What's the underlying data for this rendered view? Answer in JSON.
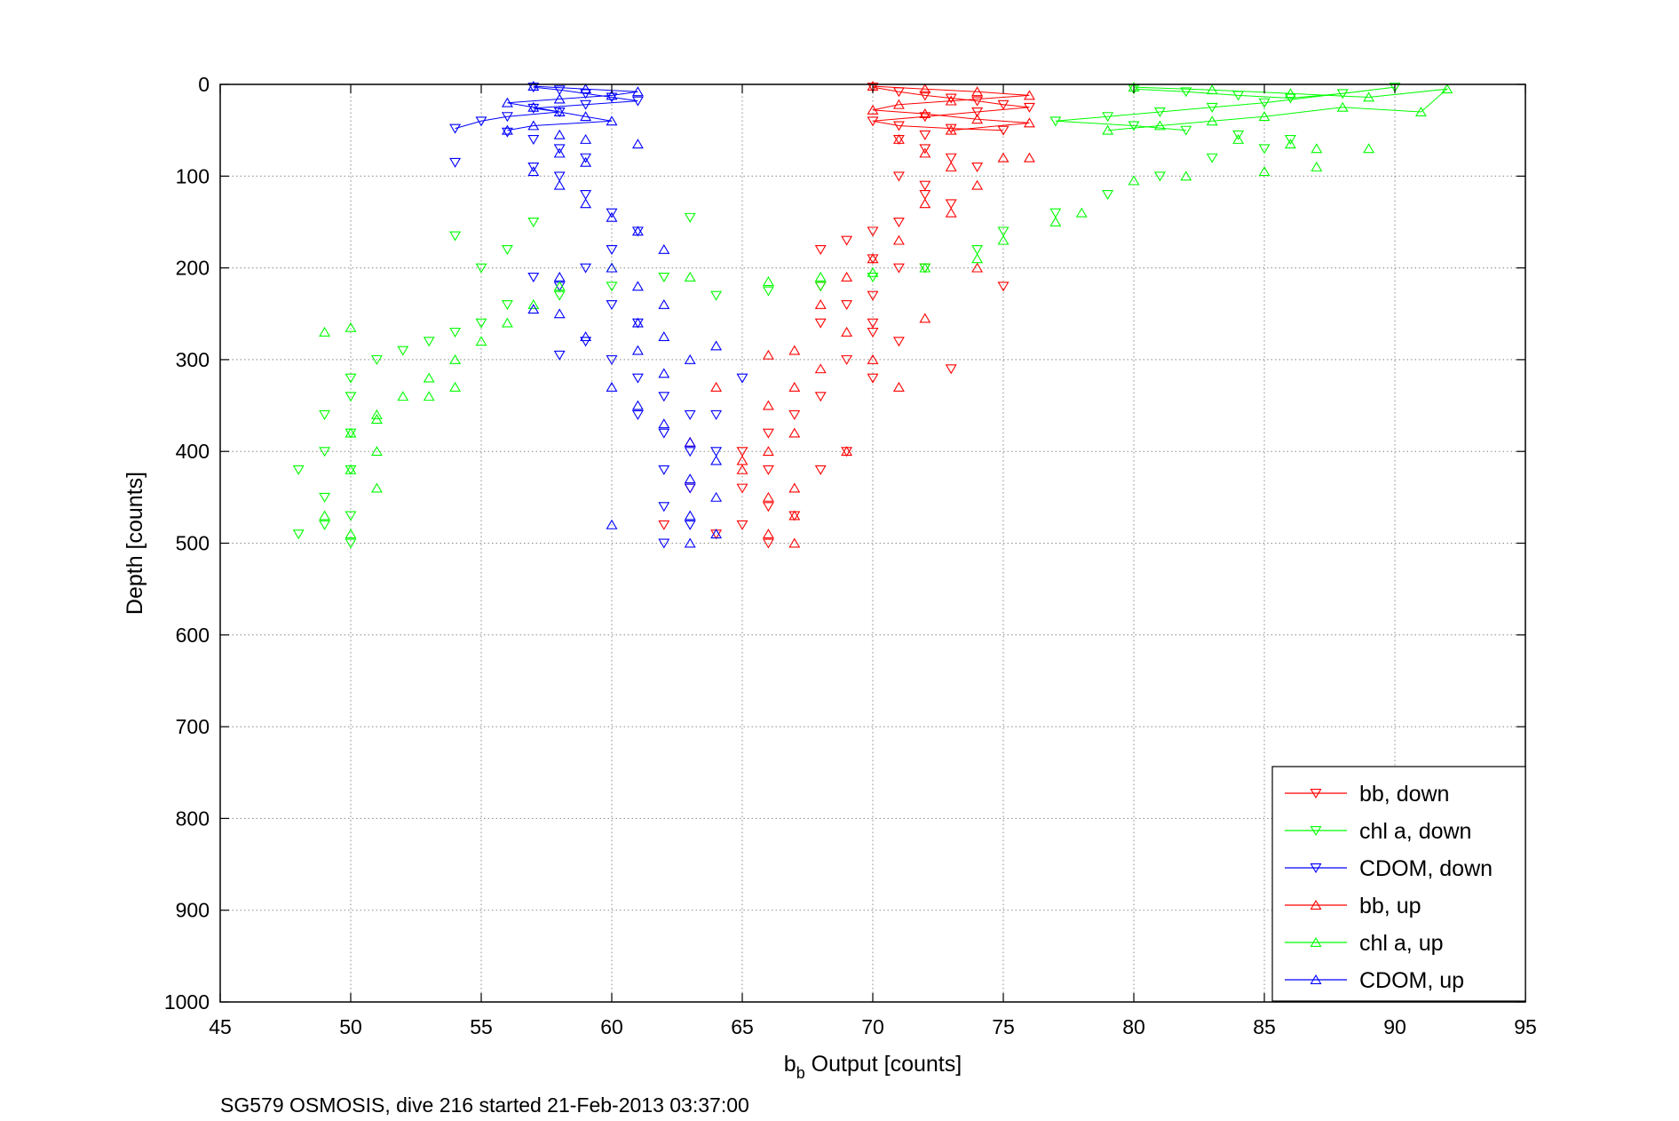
{
  "chart_data": {
    "type": "scatter",
    "title": "",
    "xlabel_main": "b",
    "xlabel_sub": "b",
    "xlabel_rest": " Output [counts]",
    "ylabel": "Depth [counts]",
    "footer": "SG579 OSMOSIS, dive 216 started 21-Feb-2013 03:37:00",
    "xlim": [
      45,
      95
    ],
    "ylim": [
      0,
      1000
    ],
    "y_reversed": true,
    "grid": true,
    "legend_position": "bottom-right",
    "x_ticks": [
      45,
      50,
      55,
      60,
      65,
      70,
      75,
      80,
      85,
      90,
      95
    ],
    "y_ticks": [
      0,
      100,
      200,
      300,
      400,
      500,
      600,
      700,
      800,
      900,
      1000
    ],
    "x_tick_labels": [
      "45",
      "50",
      "55",
      "60",
      "65",
      "70",
      "75",
      "80",
      "85",
      "90",
      "95"
    ],
    "y_tick_labels": [
      "0",
      "100",
      "200",
      "300",
      "400",
      "500",
      "600",
      "700",
      "800",
      "900",
      "1000"
    ],
    "series": [
      {
        "name": "bb, down",
        "color": "#ff0000",
        "marker": "triangle-down",
        "points": [
          [
            70,
            3
          ],
          [
            71,
            8
          ],
          [
            72,
            12
          ],
          [
            73,
            15
          ],
          [
            74,
            18
          ],
          [
            75,
            22
          ],
          [
            76,
            25
          ],
          [
            74,
            30
          ],
          [
            72,
            35
          ],
          [
            70,
            40
          ],
          [
            71,
            45
          ],
          [
            73,
            48
          ],
          [
            75,
            50
          ],
          [
            72,
            55
          ],
          [
            71,
            60
          ],
          [
            72,
            70
          ],
          [
            73,
            80
          ],
          [
            74,
            90
          ],
          [
            71,
            100
          ],
          [
            72,
            110
          ],
          [
            72,
            120
          ],
          [
            73,
            130
          ],
          [
            71,
            150
          ],
          [
            70,
            160
          ],
          [
            69,
            170
          ],
          [
            68,
            180
          ],
          [
            70,
            190
          ],
          [
            71,
            200
          ],
          [
            68,
            220
          ],
          [
            70,
            230
          ],
          [
            69,
            240
          ],
          [
            68,
            260
          ],
          [
            70,
            270
          ],
          [
            71,
            280
          ],
          [
            69,
            300
          ],
          [
            70,
            320
          ],
          [
            68,
            340
          ],
          [
            67,
            360
          ],
          [
            66,
            380
          ],
          [
            65,
            400
          ],
          [
            66,
            420
          ],
          [
            65,
            440
          ],
          [
            66,
            460
          ],
          [
            65,
            480
          ],
          [
            64,
            490
          ],
          [
            66,
            500
          ],
          [
            67,
            470
          ],
          [
            68,
            420
          ],
          [
            69,
            400
          ],
          [
            62,
            480
          ],
          [
            63,
            440
          ],
          [
            73,
            310
          ],
          [
            75,
            220
          ],
          [
            72,
            200
          ],
          [
            70,
            260
          ]
        ]
      },
      {
        "name": "chl a, down",
        "color": "#00ff00",
        "marker": "triangle-down",
        "points": [
          [
            80,
            5
          ],
          [
            82,
            8
          ],
          [
            84,
            12
          ],
          [
            86,
            15
          ],
          [
            88,
            10
          ],
          [
            90,
            3
          ],
          [
            85,
            20
          ],
          [
            83,
            25
          ],
          [
            81,
            30
          ],
          [
            79,
            35
          ],
          [
            77,
            40
          ],
          [
            80,
            45
          ],
          [
            82,
            50
          ],
          [
            84,
            55
          ],
          [
            86,
            60
          ],
          [
            85,
            70
          ],
          [
            83,
            80
          ],
          [
            81,
            100
          ],
          [
            79,
            120
          ],
          [
            77,
            140
          ],
          [
            75,
            160
          ],
          [
            74,
            180
          ],
          [
            72,
            200
          ],
          [
            70,
            210
          ],
          [
            68,
            220
          ],
          [
            66,
            225
          ],
          [
            64,
            230
          ],
          [
            62,
            210
          ],
          [
            60,
            220
          ],
          [
            58,
            230
          ],
          [
            56,
            240
          ],
          [
            55,
            260
          ],
          [
            54,
            270
          ],
          [
            53,
            280
          ],
          [
            52,
            290
          ],
          [
            51,
            300
          ],
          [
            50,
            320
          ],
          [
            50,
            340
          ],
          [
            49,
            360
          ],
          [
            50,
            380
          ],
          [
            49,
            400
          ],
          [
            50,
            420
          ],
          [
            48,
            420
          ],
          [
            49,
            450
          ],
          [
            50,
            470
          ],
          [
            48,
            490
          ],
          [
            49,
            480
          ],
          [
            50,
            500
          ],
          [
            57,
            150
          ],
          [
            56,
            180
          ],
          [
            55,
            200
          ],
          [
            63,
            145
          ],
          [
            54,
            165
          ]
        ]
      },
      {
        "name": "CDOM, down",
        "color": "#0000ff",
        "marker": "triangle-down",
        "points": [
          [
            57,
            3
          ],
          [
            58,
            6
          ],
          [
            59,
            10
          ],
          [
            60,
            14
          ],
          [
            61,
            18
          ],
          [
            59,
            22
          ],
          [
            57,
            26
          ],
          [
            58,
            30
          ],
          [
            56,
            35
          ],
          [
            55,
            40
          ],
          [
            54,
            48
          ],
          [
            56,
            52
          ],
          [
            57,
            60
          ],
          [
            58,
            70
          ],
          [
            59,
            80
          ],
          [
            57,
            90
          ],
          [
            58,
            100
          ],
          [
            59,
            120
          ],
          [
            60,
            140
          ],
          [
            61,
            160
          ],
          [
            60,
            180
          ],
          [
            59,
            200
          ],
          [
            58,
            220
          ],
          [
            60,
            240
          ],
          [
            61,
            260
          ],
          [
            59,
            280
          ],
          [
            58,
            295
          ],
          [
            60,
            300
          ],
          [
            61,
            320
          ],
          [
            62,
            340
          ],
          [
            63,
            360
          ],
          [
            62,
            380
          ],
          [
            63,
            400
          ],
          [
            62,
            420
          ],
          [
            63,
            440
          ],
          [
            62,
            460
          ],
          [
            63,
            480
          ],
          [
            62,
            500
          ],
          [
            61,
            360
          ],
          [
            64,
            360
          ],
          [
            64,
            400
          ],
          [
            65,
            320
          ],
          [
            54,
            85
          ],
          [
            57,
            210
          ]
        ]
      },
      {
        "name": "bb, up",
        "color": "#ff0000",
        "marker": "triangle-up",
        "points": [
          [
            70,
            2
          ],
          [
            72,
            5
          ],
          [
            74,
            8
          ],
          [
            76,
            12
          ],
          [
            73,
            18
          ],
          [
            71,
            22
          ],
          [
            70,
            28
          ],
          [
            72,
            32
          ],
          [
            74,
            38
          ],
          [
            76,
            42
          ],
          [
            73,
            50
          ],
          [
            71,
            60
          ],
          [
            72,
            75
          ],
          [
            73,
            90
          ],
          [
            74,
            110
          ],
          [
            72,
            130
          ],
          [
            73,
            140
          ],
          [
            71,
            170
          ],
          [
            70,
            190
          ],
          [
            69,
            210
          ],
          [
            68,
            240
          ],
          [
            69,
            270
          ],
          [
            67,
            290
          ],
          [
            68,
            310
          ],
          [
            67,
            330
          ],
          [
            66,
            350
          ],
          [
            67,
            380
          ],
          [
            66,
            400
          ],
          [
            65,
            420
          ],
          [
            67,
            440
          ],
          [
            66,
            450
          ],
          [
            67,
            470
          ],
          [
            66,
            490
          ],
          [
            67,
            500
          ],
          [
            64,
            330
          ],
          [
            63,
            390
          ],
          [
            65,
            410
          ],
          [
            66,
            295
          ],
          [
            70,
            300
          ],
          [
            72,
            255
          ],
          [
            71,
            330
          ],
          [
            69,
            400
          ],
          [
            74,
            200
          ],
          [
            75,
            80
          ],
          [
            76,
            80
          ]
        ]
      },
      {
        "name": "chl a, up",
        "color": "#00ff00",
        "marker": "triangle-up",
        "points": [
          [
            80,
            3
          ],
          [
            83,
            6
          ],
          [
            86,
            10
          ],
          [
            89,
            14
          ],
          [
            92,
            5
          ],
          [
            91,
            30
          ],
          [
            88,
            25
          ],
          [
            85,
            35
          ],
          [
            83,
            40
          ],
          [
            81,
            45
          ],
          [
            79,
            50
          ],
          [
            84,
            60
          ],
          [
            86,
            65
          ],
          [
            87,
            70
          ],
          [
            89,
            70
          ],
          [
            87,
            90
          ],
          [
            85,
            95
          ],
          [
            82,
            100
          ],
          [
            80,
            105
          ],
          [
            78,
            140
          ],
          [
            77,
            150
          ],
          [
            75,
            170
          ],
          [
            74,
            190
          ],
          [
            72,
            200
          ],
          [
            70,
            205
          ],
          [
            68,
            210
          ],
          [
            66,
            215
          ],
          [
            63,
            210
          ],
          [
            60,
            200
          ],
          [
            58,
            220
          ],
          [
            57,
            240
          ],
          [
            56,
            260
          ],
          [
            55,
            280
          ],
          [
            54,
            300
          ],
          [
            53,
            320
          ],
          [
            52,
            340
          ],
          [
            51,
            360
          ],
          [
            50,
            380
          ],
          [
            51,
            400
          ],
          [
            50,
            420
          ],
          [
            51,
            440
          ],
          [
            49,
            470
          ],
          [
            50,
            490
          ],
          [
            49,
            270
          ],
          [
            50,
            265
          ],
          [
            54,
            330
          ],
          [
            53,
            340
          ],
          [
            51,
            365
          ]
        ]
      },
      {
        "name": "CDOM, up",
        "color": "#0000ff",
        "marker": "triangle-up",
        "points": [
          [
            57,
            2
          ],
          [
            59,
            5
          ],
          [
            61,
            8
          ],
          [
            60,
            12
          ],
          [
            58,
            16
          ],
          [
            56,
            20
          ],
          [
            57,
            25
          ],
          [
            58,
            30
          ],
          [
            59,
            35
          ],
          [
            60,
            40
          ],
          [
            57,
            45
          ],
          [
            56,
            50
          ],
          [
            58,
            55
          ],
          [
            59,
            60
          ],
          [
            61,
            65
          ],
          [
            58,
            75
          ],
          [
            59,
            85
          ],
          [
            57,
            95
          ],
          [
            58,
            110
          ],
          [
            59,
            130
          ],
          [
            60,
            145
          ],
          [
            61,
            160
          ],
          [
            62,
            180
          ],
          [
            60,
            200
          ],
          [
            61,
            220
          ],
          [
            62,
            240
          ],
          [
            61,
            260
          ],
          [
            62,
            275
          ],
          [
            61,
            290
          ],
          [
            64,
            285
          ],
          [
            63,
            300
          ],
          [
            62,
            315
          ],
          [
            60,
            330
          ],
          [
            61,
            350
          ],
          [
            62,
            370
          ],
          [
            63,
            390
          ],
          [
            64,
            410
          ],
          [
            63,
            430
          ],
          [
            64,
            450
          ],
          [
            63,
            470
          ],
          [
            64,
            490
          ],
          [
            63,
            500
          ],
          [
            60,
            480
          ],
          [
            59,
            275
          ],
          [
            58,
            250
          ],
          [
            57,
            245
          ],
          [
            58,
            210
          ]
        ]
      }
    ],
    "connect_near_surface_depth": 50
  }
}
